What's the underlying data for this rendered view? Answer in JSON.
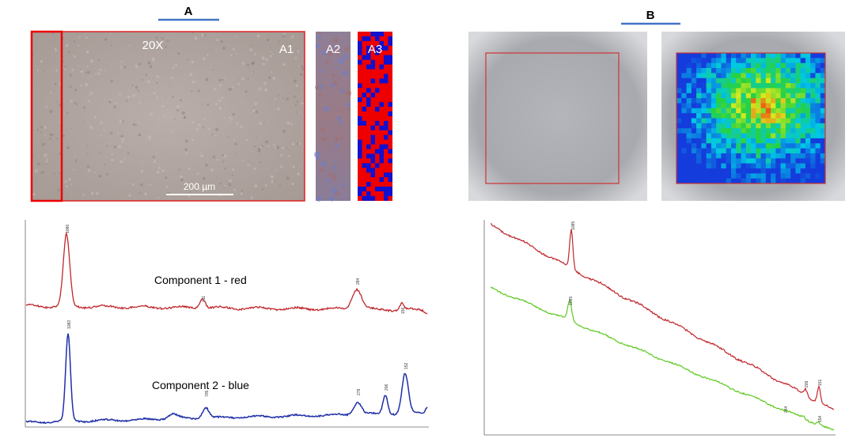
{
  "panel_a": {
    "title": "A",
    "magnification": "20X",
    "labels": [
      "A1",
      "A2",
      "A3"
    ],
    "scale_bar": "200 µm",
    "components": [
      "Component 1 - red",
      "Component 2 - blue"
    ],
    "peaks_red": [
      "1086",
      "711",
      "284",
      "156"
    ],
    "peaks_blue": [
      "1082",
      "705",
      "279",
      "206",
      "152"
    ]
  },
  "panel_b": {
    "title": "B",
    "peaks_red": [
      "1085",
      "209",
      "151"
    ],
    "peaks_green": [
      "1085",
      "244",
      "154"
    ]
  }
}
